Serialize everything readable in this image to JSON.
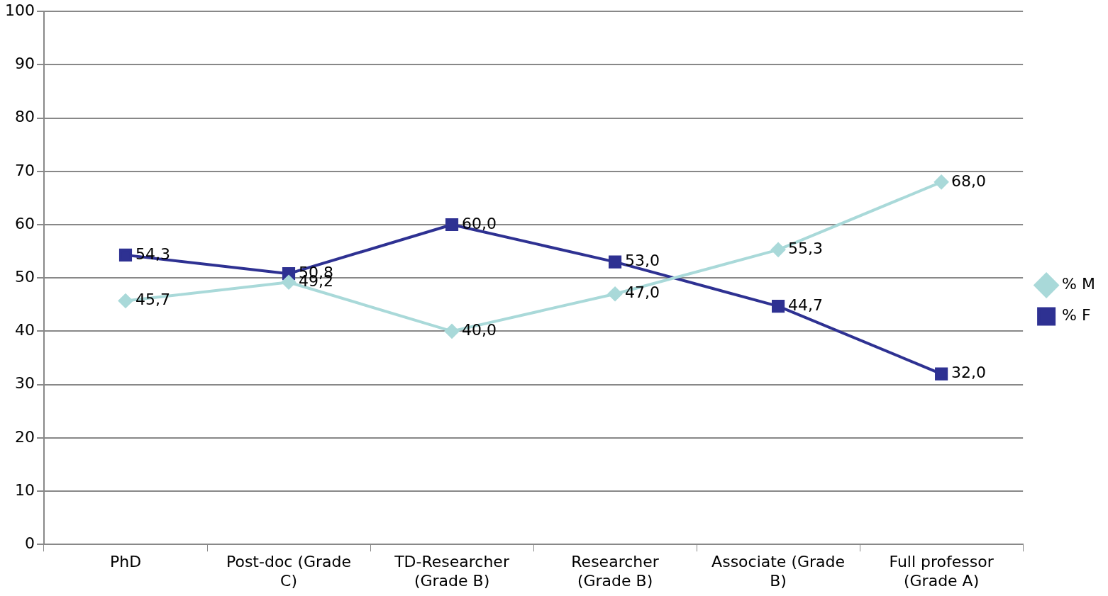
{
  "chart_data": {
    "type": "line",
    "categories": [
      "PhD",
      "Post-doc (Grade C)",
      "TD-Researcher (Grade B)",
      "Researcher (Grade B)",
      "Associate (Grade B)",
      "Full professor (Grade A)"
    ],
    "series": [
      {
        "name": "% M",
        "color": "#a9d9d9",
        "marker": "diamond",
        "values": [
          45.7,
          49.2,
          40.0,
          47.0,
          55.3,
          68.0
        ],
        "value_labels": [
          "45,7",
          "49,2",
          "40,0",
          "47,0",
          "55,3",
          "68,0"
        ]
      },
      {
        "name": "% F",
        "color": "#2e3192",
        "marker": "square",
        "values": [
          54.3,
          50.8,
          60.0,
          53.0,
          44.7,
          32.0
        ],
        "value_labels": [
          "54,3",
          "50,8",
          "60,0",
          "53,0",
          "44,7",
          "32,0"
        ]
      }
    ],
    "ylim": [
      0,
      100
    ],
    "yticks": [
      0,
      10,
      20,
      30,
      40,
      50,
      60,
      70,
      80,
      90,
      100
    ],
    "grid": "y",
    "legend": "right",
    "line_style": "solid"
  }
}
